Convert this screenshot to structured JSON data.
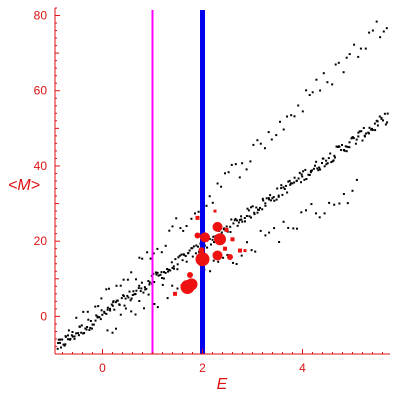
{
  "chart_data": {
    "type": "scatter",
    "xlabel": "E",
    "ylabel": "<M>",
    "xlim": [
      -0.95,
      5.75
    ],
    "ylim": [
      -10,
      82
    ],
    "x_ticks": [
      0,
      2,
      4
    ],
    "y_ticks": [
      0,
      20,
      40,
      60,
      80
    ],
    "grid": false,
    "colors": {
      "axis": "#dd1111",
      "ticks": "#dd1111",
      "points": "#000000",
      "highlight_points": "#ee1111",
      "vline_magenta": "#ff00ff",
      "vline_blue": "#0000ee"
    },
    "vertical_lines": [
      {
        "x": 1.0,
        "color": "#ff00ff",
        "width": 2
      },
      {
        "x": 2.0,
        "color": "#0000ee",
        "width": 5
      }
    ],
    "bands": [
      {
        "x0": -0.9,
        "y0": -8,
        "x1": 5.7,
        "y1": 53,
        "spread": 1.6,
        "count": 300
      },
      {
        "x0": -0.9,
        "y0": -8,
        "x1": 5.7,
        "y1": 79,
        "spread": 3.0,
        "count": 90
      },
      {
        "x0": 0.1,
        "y0": -2,
        "x1": 5.1,
        "y1": 34,
        "spread": 3.0,
        "count": 55
      }
    ],
    "highlight_series": [
      {
        "x": 1.7,
        "y": 7.8,
        "size": 7
      },
      {
        "x": 1.78,
        "y": 8.5,
        "size": 6
      },
      {
        "x": 1.75,
        "y": 11.0,
        "size": 3
      },
      {
        "x": 1.45,
        "y": 6.0,
        "size": 2
      },
      {
        "x": 1.6,
        "y": 8.0,
        "size": 2
      },
      {
        "x": 2.0,
        "y": 15.2,
        "size": 7
      },
      {
        "x": 1.98,
        "y": 17.6,
        "size": 3
      },
      {
        "x": 2.05,
        "y": 21.0,
        "size": 5
      },
      {
        "x": 1.9,
        "y": 21.5,
        "size": 3
      },
      {
        "x": 2.3,
        "y": 23.8,
        "size": 5
      },
      {
        "x": 2.35,
        "y": 20.5,
        "size": 6
      },
      {
        "x": 2.3,
        "y": 16.2,
        "size": 5
      },
      {
        "x": 2.55,
        "y": 15.8,
        "size": 3
      },
      {
        "x": 2.6,
        "y": 20.5,
        "size": 2
      },
      {
        "x": 2.48,
        "y": 23.0,
        "size": 2
      },
      {
        "x": 2.45,
        "y": 18.0,
        "size": 2
      },
      {
        "x": 2.75,
        "y": 17.5,
        "size": 2
      },
      {
        "x": 2.85,
        "y": 17.5,
        "size": 1.5
      },
      {
        "x": 1.9,
        "y": 26.2,
        "size": 2
      },
      {
        "x": 2.25,
        "y": 28.0,
        "size": 1.5
      }
    ]
  }
}
